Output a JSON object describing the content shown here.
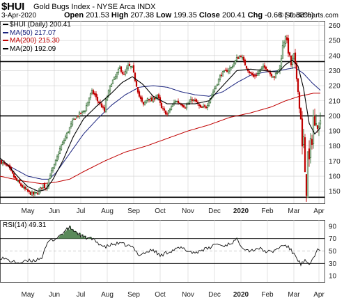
{
  "header": {
    "symbol": "$HUI",
    "name": "Gold Bugs Index - NYSE Arca INDX",
    "date": "3-Apr-2020",
    "open_label": "Open",
    "open": "201.53",
    "high_label": "High",
    "high": "207.38",
    "low_label": "Low",
    "low": "199.35",
    "close_label": "Close",
    "close": "200.41",
    "chg_label": "Chg",
    "chg": "-0.66 (-0.33%)",
    "brand": "© StockCharts.com"
  },
  "legend": {
    "price": "$HUI (Daily) 200.41",
    "ma50": "MA(50) 217.07",
    "ma200": "MA(200) 215.30",
    "ma20": "MA(20) 192.09"
  },
  "rsi_label": "RSI(14) 49.31",
  "colors": {
    "up": "#1f5f1f",
    "down": "#c00000",
    "ma50": "#1a237e",
    "ma200": "#c00000",
    "ma20": "#000000",
    "rsi": "#111111",
    "rsi_fill": "#5a8a5a",
    "grid": "#d0d0d0"
  },
  "chart_data": [
    {
      "type": "candlestick",
      "y_ticks": [
        150,
        160,
        170,
        180,
        190,
        200,
        210,
        220,
        230,
        240,
        250,
        260
      ],
      "ylim": [
        142,
        263
      ],
      "x_labels": [
        "May",
        "Jun",
        "Jul",
        "Aug",
        "Sep",
        "Oct",
        "Nov",
        "Dec",
        "2020",
        "Feb",
        "Mar",
        "Apr"
      ],
      "x_label_bold": [
        false,
        false,
        false,
        false,
        false,
        false,
        false,
        false,
        true,
        false,
        false,
        false
      ],
      "horizontal_lines": [
        236,
        200,
        146
      ],
      "price_anchors": [
        [
          0,
          170
        ],
        [
          12,
          166
        ],
        [
          22,
          158
        ],
        [
          34,
          152
        ],
        [
          42,
          149
        ],
        [
          48,
          148
        ],
        [
          54,
          149
        ],
        [
          62,
          154
        ],
        [
          66,
          152
        ],
        [
          72,
          161
        ],
        [
          78,
          167
        ],
        [
          86,
          178
        ],
        [
          96,
          188
        ],
        [
          106,
          198
        ],
        [
          114,
          201
        ],
        [
          122,
          204
        ],
        [
          128,
          212
        ],
        [
          132,
          216
        ],
        [
          136,
          214
        ],
        [
          140,
          210
        ],
        [
          144,
          208
        ],
        [
          150,
          203
        ],
        [
          152,
          210
        ],
        [
          160,
          222
        ],
        [
          166,
          226
        ],
        [
          172,
          232
        ],
        [
          178,
          227
        ],
        [
          184,
          233
        ],
        [
          190,
          232
        ],
        [
          194,
          224
        ],
        [
          200,
          213
        ],
        [
          206,
          207
        ],
        [
          212,
          212
        ],
        [
          218,
          210
        ],
        [
          226,
          214
        ],
        [
          232,
          205
        ],
        [
          240,
          201
        ],
        [
          246,
          206
        ],
        [
          252,
          210
        ],
        [
          260,
          208
        ],
        [
          266,
          206
        ],
        [
          270,
          208
        ],
        [
          276,
          211
        ],
        [
          282,
          209
        ],
        [
          288,
          205
        ],
        [
          296,
          206
        ],
        [
          302,
          212
        ],
        [
          310,
          220
        ],
        [
          318,
          228
        ],
        [
          326,
          230
        ],
        [
          332,
          232
        ],
        [
          340,
          238
        ],
        [
          346,
          240
        ],
        [
          352,
          234
        ],
        [
          358,
          229
        ],
        [
          364,
          226
        ],
        [
          370,
          228
        ],
        [
          376,
          232
        ],
        [
          382,
          232
        ],
        [
          388,
          228
        ],
        [
          394,
          226
        ],
        [
          398,
          229
        ],
        [
          402,
          233
        ],
        [
          406,
          246
        ],
        [
          410,
          254
        ],
        [
          414,
          243
        ],
        [
          418,
          234
        ],
        [
          422,
          240
        ],
        [
          426,
          225
        ],
        [
          428,
          218
        ],
        [
          430,
          205
        ],
        [
          432,
          200
        ],
        [
          434,
          178
        ],
        [
          436,
          185
        ],
        [
          438,
          160
        ],
        [
          440,
          150
        ],
        [
          442,
          175
        ],
        [
          444,
          170
        ],
        [
          446,
          182
        ],
        [
          448,
          184
        ],
        [
          450,
          200
        ],
        [
          452,
          192
        ],
        [
          454,
          198
        ],
        [
          456,
          195
        ],
        [
          458,
          192
        ],
        [
          460,
          200
        ]
      ],
      "ma50_anchors": [
        [
          0,
          170
        ],
        [
          20,
          165
        ],
        [
          40,
          160
        ],
        [
          60,
          158
        ],
        [
          70,
          158
        ],
        [
          80,
          162
        ],
        [
          100,
          175
        ],
        [
          120,
          188
        ],
        [
          140,
          198
        ],
        [
          160,
          207
        ],
        [
          180,
          214
        ],
        [
          200,
          219
        ],
        [
          220,
          220
        ],
        [
          240,
          219
        ],
        [
          260,
          216
        ],
        [
          280,
          214
        ],
        [
          300,
          213
        ],
        [
          320,
          216
        ],
        [
          340,
          222
        ],
        [
          360,
          227
        ],
        [
          380,
          229
        ],
        [
          400,
          230
        ],
        [
          412,
          231
        ],
        [
          424,
          232
        ],
        [
          436,
          228
        ],
        [
          448,
          222
        ],
        [
          460,
          217
        ]
      ],
      "ma200_anchors": [
        [
          0,
          160
        ],
        [
          30,
          157
        ],
        [
          60,
          155
        ],
        [
          80,
          156
        ],
        [
          100,
          158
        ],
        [
          120,
          163
        ],
        [
          150,
          170
        ],
        [
          180,
          176
        ],
        [
          210,
          180
        ],
        [
          240,
          185
        ],
        [
          270,
          190
        ],
        [
          300,
          194
        ],
        [
          330,
          199
        ],
        [
          360,
          202
        ],
        [
          390,
          206
        ],
        [
          410,
          210
        ],
        [
          430,
          213
        ],
        [
          450,
          215
        ],
        [
          460,
          215
        ]
      ],
      "ma20_anchors": [
        [
          0,
          172
        ],
        [
          10,
          168
        ],
        [
          25,
          160
        ],
        [
          40,
          153
        ],
        [
          55,
          150
        ],
        [
          65,
          151
        ],
        [
          75,
          157
        ],
        [
          90,
          170
        ],
        [
          105,
          186
        ],
        [
          120,
          198
        ],
        [
          140,
          207
        ],
        [
          160,
          215
        ],
        [
          175,
          222
        ],
        [
          190,
          226
        ],
        [
          205,
          221
        ],
        [
          220,
          213
        ],
        [
          240,
          208
        ],
        [
          260,
          208
        ],
        [
          280,
          208
        ],
        [
          300,
          210
        ],
        [
          320,
          220
        ],
        [
          340,
          230
        ],
        [
          360,
          231
        ],
        [
          380,
          230
        ],
        [
          400,
          229
        ],
        [
          410,
          234
        ],
        [
          420,
          237
        ],
        [
          428,
          233
        ],
        [
          436,
          218
        ],
        [
          444,
          195
        ],
        [
          452,
          188
        ],
        [
          460,
          192
        ]
      ],
      "series": [
        {
          "name": "$HUI (Daily)",
          "values": [
            200.41
          ]
        },
        {
          "name": "MA(50)",
          "values": [
            217.07
          ]
        },
        {
          "name": "MA(200)",
          "values": [
            215.3
          ]
        },
        {
          "name": "MA(20)",
          "values": [
            192.09
          ]
        }
      ]
    },
    {
      "type": "line",
      "title": "RSI(14) 49.31",
      "y_ticks": [
        10,
        30,
        50,
        70,
        90
      ],
      "ylim": [
        0,
        100
      ],
      "overbought": 70,
      "oversold": 30,
      "rsi_anchors": [
        [
          0,
          40
        ],
        [
          10,
          36
        ],
        [
          20,
          32
        ],
        [
          30,
          31
        ],
        [
          40,
          34
        ],
        [
          50,
          35
        ],
        [
          60,
          40
        ],
        [
          70,
          66
        ],
        [
          80,
          70
        ],
        [
          90,
          79
        ],
        [
          100,
          88
        ],
        [
          110,
          80
        ],
        [
          120,
          72
        ],
        [
          130,
          70
        ],
        [
          140,
          64
        ],
        [
          150,
          56
        ],
        [
          160,
          60
        ],
        [
          170,
          62
        ],
        [
          180,
          60
        ],
        [
          190,
          56
        ],
        [
          200,
          44
        ],
        [
          210,
          48
        ],
        [
          220,
          52
        ],
        [
          230,
          42
        ],
        [
          240,
          48
        ],
        [
          250,
          52
        ],
        [
          260,
          55
        ],
        [
          270,
          50
        ],
        [
          280,
          47
        ],
        [
          290,
          52
        ],
        [
          300,
          54
        ],
        [
          310,
          62
        ],
        [
          320,
          58
        ],
        [
          330,
          62
        ],
        [
          340,
          68
        ],
        [
          350,
          55
        ],
        [
          360,
          50
        ],
        [
          370,
          55
        ],
        [
          380,
          50
        ],
        [
          390,
          48
        ],
        [
          400,
          55
        ],
        [
          408,
          60
        ],
        [
          414,
          56
        ],
        [
          420,
          48
        ],
        [
          426,
          40
        ],
        [
          432,
          28
        ],
        [
          438,
          34
        ],
        [
          444,
          26
        ],
        [
          450,
          40
        ],
        [
          456,
          52
        ],
        [
          460,
          49
        ]
      ]
    }
  ]
}
